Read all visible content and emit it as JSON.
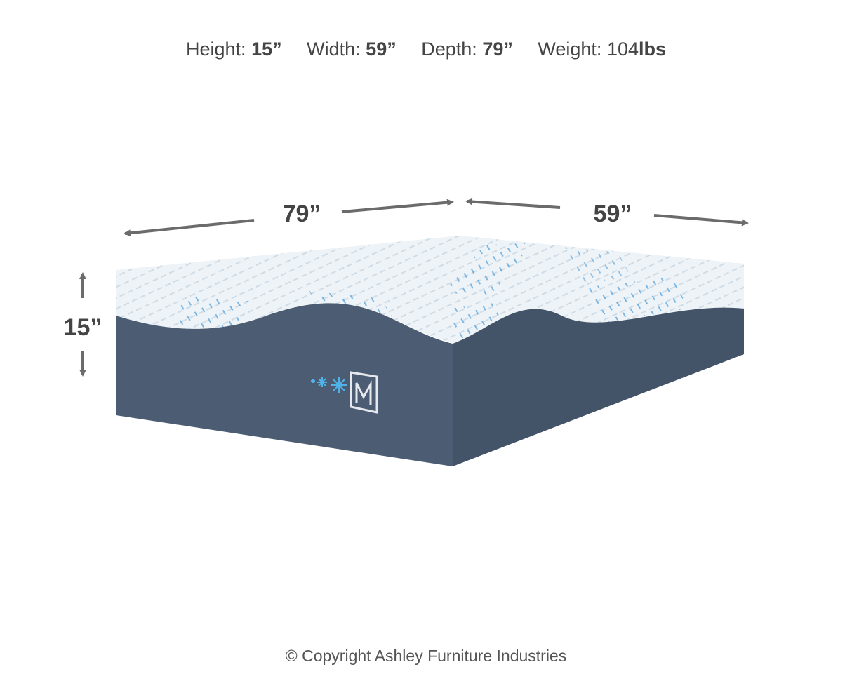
{
  "specs": [
    {
      "label": "Height:",
      "value": "15”"
    },
    {
      "label": "Width:",
      "value": "59”"
    },
    {
      "label": "Depth:",
      "value": "79”"
    },
    {
      "label": "Weight:",
      "value": "104",
      "unit": "lbs"
    }
  ],
  "dimensions": {
    "depth_label": "79”",
    "width_label": "59”",
    "height_label": "15”"
  },
  "colors": {
    "cover_top": "#eef3f7",
    "cover_accent": "#2f8fd8",
    "base_side": "#4c5c72",
    "arrow": "#6b6b6b"
  },
  "copyright": "© Copyright Ashley Furniture Industries"
}
